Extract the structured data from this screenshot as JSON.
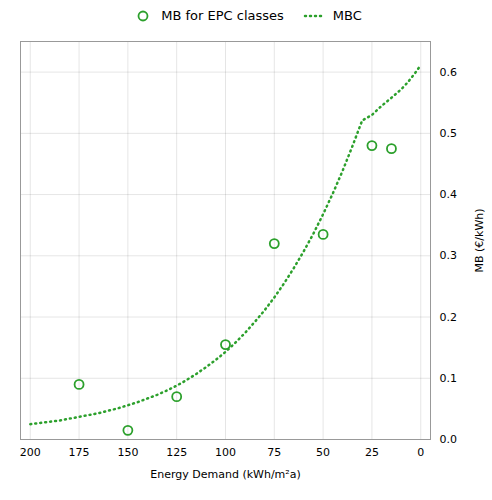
{
  "chart_data": {
    "type": "scatter",
    "xlabel": "Energy Demand (kWh/m²a)",
    "ylabel": "MB (€/kWh)",
    "series": [
      {
        "name": "MB for EPC classes",
        "type": "scatter",
        "marker": "circle",
        "color": "#2ca02c",
        "x": [
          175,
          150,
          125,
          100,
          75,
          50,
          25,
          15
        ],
        "values": [
          0.09,
          0.015,
          0.07,
          0.155,
          0.32,
          0.335,
          0.48,
          0.475
        ]
      },
      {
        "name": "MBC",
        "type": "line",
        "line_style": "dotted",
        "color": "#2ca02c",
        "x": [
          200,
          195,
          190,
          185,
          180,
          175,
          170,
          165,
          160,
          155,
          150,
          145,
          140,
          135,
          130,
          125,
          120,
          115,
          110,
          105,
          100,
          95,
          90,
          85,
          80,
          75,
          70,
          65,
          60,
          55,
          50,
          45,
          40,
          35,
          30,
          25,
          20,
          15,
          10,
          7,
          5,
          3,
          1,
          0
        ],
        "values": [
          0.025,
          0.027,
          0.029,
          0.031,
          0.034,
          0.037,
          0.04,
          0.043,
          0.047,
          0.051,
          0.056,
          0.061,
          0.067,
          0.073,
          0.08,
          0.088,
          0.097,
          0.107,
          0.118,
          0.13,
          0.143,
          0.158,
          0.174,
          0.192,
          0.211,
          0.232,
          0.255,
          0.28,
          0.307,
          0.336,
          0.368,
          0.402,
          0.439,
          0.479,
          0.521,
          0.53,
          0.545,
          0.558,
          0.572,
          0.582,
          0.59,
          0.598,
          0.607,
          0.612
        ]
      }
    ],
    "xlim": [
      205,
      -5
    ],
    "ylim": [
      0,
      0.65
    ],
    "xticks": [
      200,
      175,
      150,
      125,
      100,
      75,
      50,
      25,
      0
    ],
    "yticks": [
      {
        "value": 0,
        "label": "0.0"
      },
      0.1,
      0.2,
      0.3,
      0.4,
      0.5,
      0.6
    ],
    "grid": true,
    "legend": "upper center"
  }
}
